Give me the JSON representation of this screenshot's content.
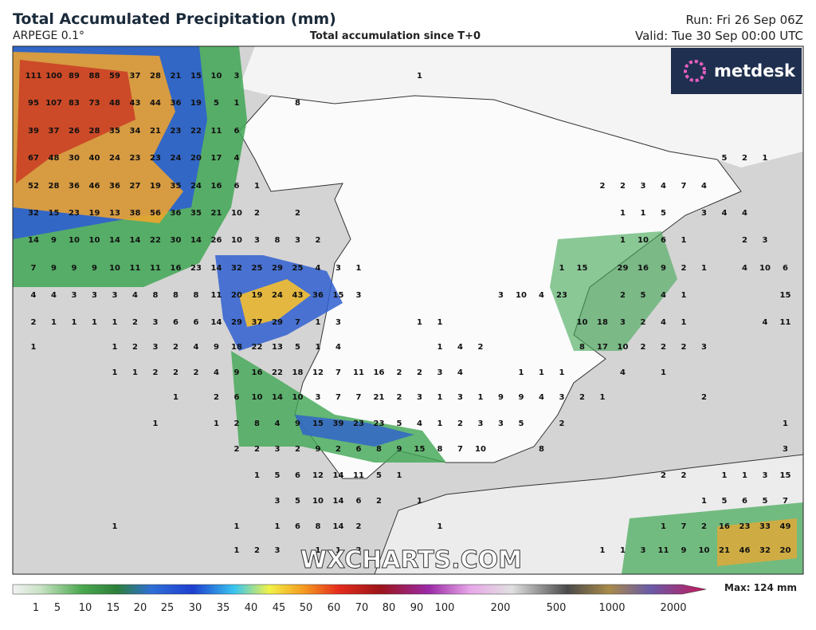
{
  "header": {
    "title": "Total Accumulated Precipitation (mm)",
    "model": "ARPEGE 0.1°",
    "subtitle": "Total accumulation since T+0",
    "run": "Run: Fri 26 Sep 06Z",
    "valid": "Valid: Tue 30 Sep 00:00 UTC"
  },
  "logo": "metdesk",
  "watermark": "WXCHARTS.COM",
  "colorbar": {
    "ticks": [
      1,
      5,
      10,
      15,
      20,
      25,
      30,
      35,
      40,
      45,
      50,
      60,
      70,
      80,
      90,
      100,
      200,
      500,
      1000,
      2000
    ],
    "max_label": "Max: 124 mm"
  },
  "map_labels": {
    "rows": [
      [
        111,
        100,
        89,
        88,
        59,
        37,
        28,
        21,
        15,
        10,
        3,
        1
      ],
      [
        95,
        107,
        83,
        73,
        48,
        43,
        44,
        36,
        19,
        5,
        1,
        8
      ],
      [
        39,
        37,
        26,
        28,
        35,
        34,
        21,
        23,
        22,
        11,
        6
      ],
      [
        67,
        48,
        30,
        40,
        24,
        23,
        23,
        24,
        20,
        17,
        4,
        5,
        2,
        1
      ],
      [
        52,
        28,
        36,
        46,
        36,
        27,
        19,
        35,
        24,
        16,
        6,
        1,
        2,
        2,
        3,
        4,
        7,
        4
      ],
      [
        32,
        15,
        23,
        19,
        13,
        38,
        56,
        36,
        35,
        21,
        10,
        2,
        2,
        1,
        1,
        5,
        3,
        4,
        4
      ],
      [
        14,
        9,
        10,
        10,
        14,
        14,
        22,
        30,
        14,
        26,
        10,
        3,
        8,
        3,
        2,
        1,
        10,
        6,
        1,
        2,
        3
      ],
      [
        7,
        9,
        9,
        9,
        10,
        11,
        11,
        16,
        23,
        14,
        32,
        25,
        29,
        25,
        4,
        3,
        1,
        1,
        15,
        29,
        16,
        9,
        2,
        1,
        4,
        10,
        6
      ],
      [
        4,
        4,
        3,
        3,
        3,
        4,
        8,
        8,
        8,
        11,
        20,
        19,
        24,
        43,
        36,
        15,
        3,
        3,
        10,
        4,
        23,
        2,
        5,
        4,
        1,
        15
      ],
      [
        2,
        1,
        1,
        1,
        1,
        2,
        3,
        6,
        6,
        14,
        29,
        37,
        29,
        7,
        1,
        3,
        1,
        1,
        10,
        18,
        3,
        2,
        4,
        1,
        4,
        11
      ],
      [
        1,
        1,
        2,
        3,
        2,
        4,
        9,
        18,
        22,
        13,
        5,
        1,
        4,
        1,
        4,
        2,
        8,
        17,
        10,
        2,
        2,
        2,
        3
      ],
      [
        1,
        1,
        2,
        2,
        2,
        4,
        9,
        16,
        22,
        18,
        12,
        7,
        11,
        16,
        2,
        2,
        3,
        4,
        1,
        1,
        1,
        4,
        1
      ],
      [
        1,
        2,
        6,
        10,
        14,
        10,
        3,
        7,
        7,
        21,
        2,
        3,
        1,
        3,
        1,
        9,
        9,
        4,
        3,
        2,
        1,
        2
      ],
      [
        1,
        1,
        2,
        8,
        4,
        9,
        15,
        39,
        23,
        23,
        5,
        4,
        1,
        2,
        3,
        3,
        5,
        2,
        1
      ],
      [
        2,
        2,
        3,
        2,
        9,
        2,
        6,
        8,
        9,
        15,
        8,
        7,
        10,
        8,
        3
      ],
      [
        1,
        5,
        6,
        12,
        14,
        11,
        5,
        1,
        2,
        2,
        1,
        1,
        3,
        15
      ],
      [
        3,
        5,
        10,
        14,
        6,
        2,
        1,
        1,
        5,
        6,
        5,
        7
      ],
      [
        1,
        1,
        1,
        6,
        8,
        14,
        2,
        1,
        1,
        7,
        2,
        16,
        23,
        33,
        49
      ],
      [
        1,
        2,
        3,
        1,
        1,
        2,
        1,
        1,
        3,
        11,
        9,
        10,
        21,
        46,
        32,
        20
      ]
    ]
  }
}
